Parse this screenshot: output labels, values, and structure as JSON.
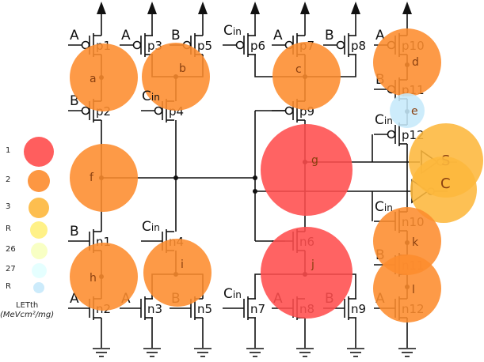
{
  "transistors": [
    {
      "name": "p1",
      "type": "p",
      "input": "A"
    },
    {
      "name": "p2",
      "type": "p",
      "input": "B"
    },
    {
      "name": "p3",
      "type": "p",
      "input": "A"
    },
    {
      "name": "p4",
      "type": "p",
      "input": "Cin"
    },
    {
      "name": "p5",
      "type": "p",
      "input": "B"
    },
    {
      "name": "p6",
      "type": "p",
      "input": "Cin"
    },
    {
      "name": "p7",
      "type": "p",
      "input": "A"
    },
    {
      "name": "p8",
      "type": "p",
      "input": "B"
    },
    {
      "name": "p9",
      "type": "p",
      "input": ""
    },
    {
      "name": "p10",
      "type": "p",
      "input": "A"
    },
    {
      "name": "p11",
      "type": "p",
      "input": "B"
    },
    {
      "name": "p12",
      "type": "p",
      "input": "Cin"
    },
    {
      "name": "n1",
      "type": "n",
      "input": "B"
    },
    {
      "name": "n2",
      "type": "n",
      "input": "A"
    },
    {
      "name": "n3",
      "type": "n",
      "input": "A"
    },
    {
      "name": "n4",
      "type": "n",
      "input": "Cin"
    },
    {
      "name": "n5",
      "type": "n",
      "input": "B"
    },
    {
      "name": "n6",
      "type": "n",
      "input": ""
    },
    {
      "name": "n7",
      "type": "n",
      "input": "Cin"
    },
    {
      "name": "n8",
      "type": "n",
      "input": "A"
    },
    {
      "name": "n9",
      "type": "n",
      "input": "B"
    },
    {
      "name": "n10",
      "type": "n",
      "input": "Cin"
    },
    {
      "name": "n11",
      "type": "n",
      "input": "B"
    },
    {
      "name": "n12",
      "type": "n",
      "input": "A"
    }
  ],
  "nodes": [
    {
      "label": "a",
      "level": "2"
    },
    {
      "label": "b",
      "level": "2"
    },
    {
      "label": "c",
      "level": "2"
    },
    {
      "label": "d",
      "level": "2"
    },
    {
      "label": "e",
      "level": "R2"
    },
    {
      "label": "f",
      "level": "2"
    },
    {
      "label": "g",
      "level": "1"
    },
    {
      "label": "S",
      "level": "3"
    },
    {
      "label": "C",
      "level": "3"
    },
    {
      "label": "h",
      "level": "2"
    },
    {
      "label": "i",
      "level": "2"
    },
    {
      "label": "j",
      "level": "1"
    },
    {
      "label": "k",
      "level": "2"
    },
    {
      "label": "l",
      "level": "2"
    }
  ],
  "legend": {
    "items": [
      {
        "key": "1",
        "label": "1",
        "color": "#ff4d4d"
      },
      {
        "key": "2",
        "label": "2",
        "color": "#fd8c2e"
      },
      {
        "key": "3",
        "label": "3",
        "color": "#fdb73c"
      },
      {
        "key": "R1",
        "label": "R",
        "color": "#fff07a"
      },
      {
        "key": "26",
        "label": "26",
        "color": "#f7ffbe"
      },
      {
        "key": "27",
        "label": "27",
        "color": "#e2ffff"
      },
      {
        "key": "R2",
        "label": "R",
        "color": "#c6e9fb"
      }
    ],
    "title": "LETth",
    "unit": "(MeVcm²/mg)"
  }
}
